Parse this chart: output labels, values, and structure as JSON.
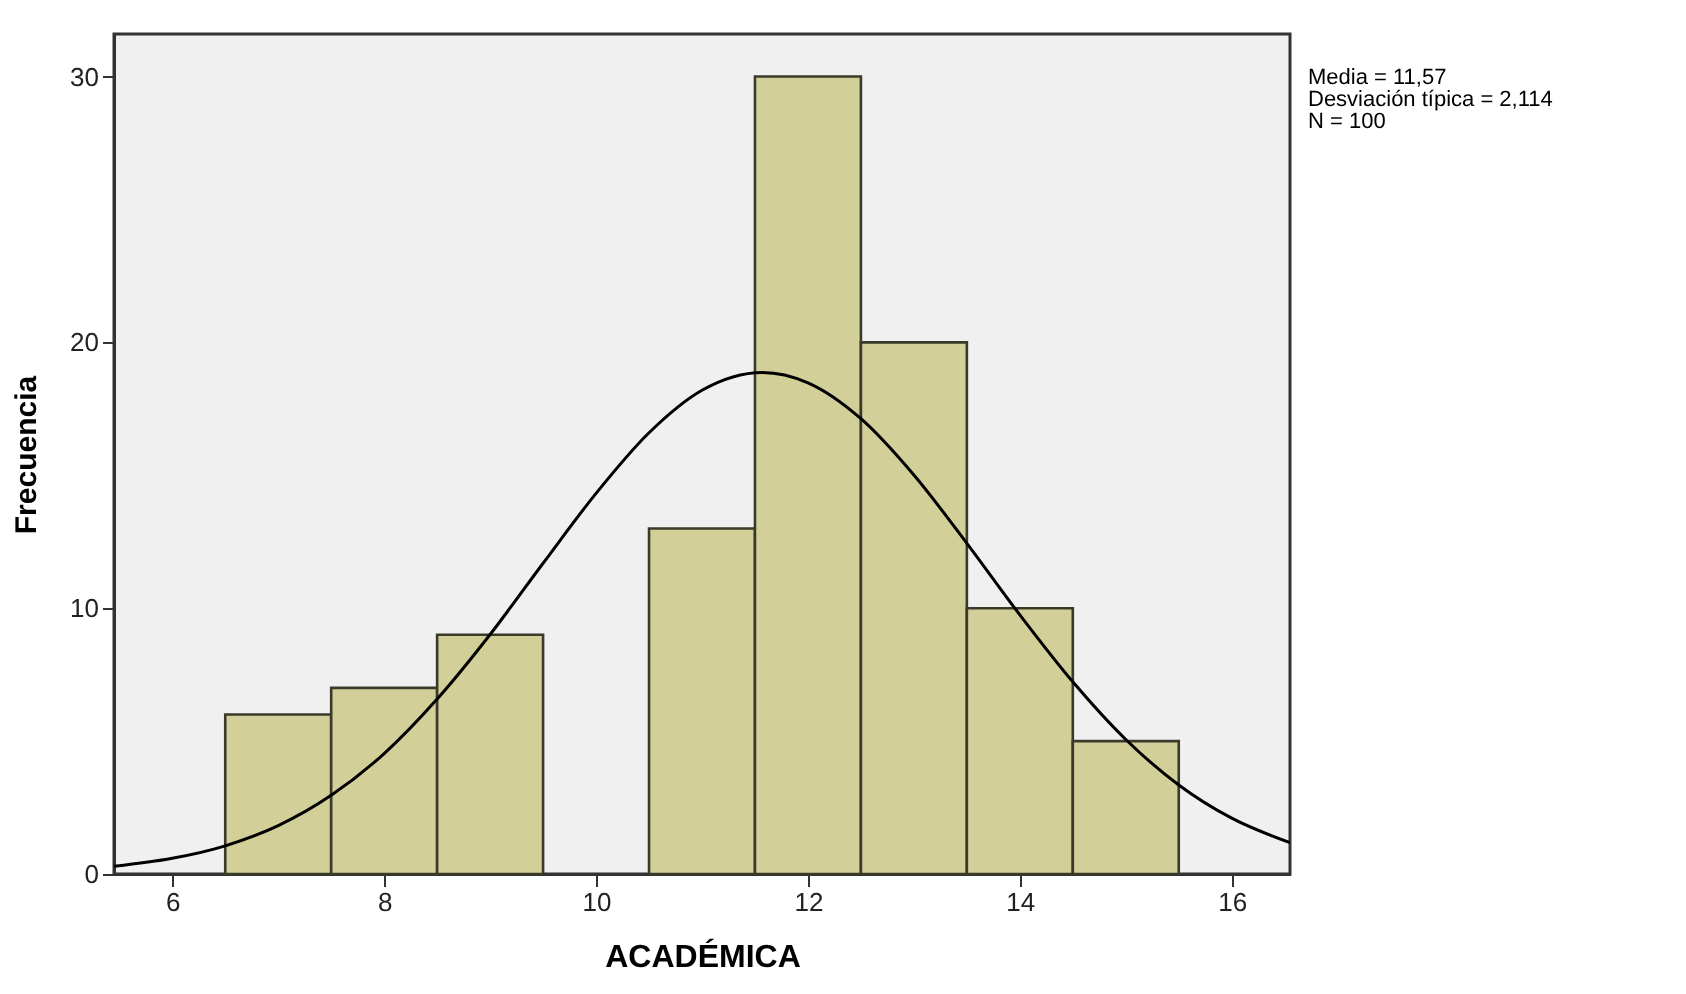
{
  "chart_data": {
    "type": "histogram",
    "xlabel": "ACADÉMICA",
    "ylabel": "Frecuencia",
    "bins": [
      6.5,
      7.5,
      8.5,
      9.5,
      10.5,
      11.5,
      12.5,
      13.5,
      14.5,
      15.5
    ],
    "series": [
      {
        "type": "histogram",
        "color": "#d3cf99",
        "values": [
          6,
          7,
          9,
          0,
          13,
          30,
          20,
          10,
          5
        ]
      },
      {
        "type": "line",
        "color": "#000000",
        "x": [
          5.45,
          6,
          6.5,
          7,
          7.5,
          8,
          8.5,
          9,
          9.5,
          10,
          10.5,
          11,
          11.57,
          12,
          12.5,
          13,
          13.5,
          14,
          14.5,
          15,
          15.5,
          16,
          16.55
        ],
        "values": [
          0.29,
          0.59,
          1.06,
          1.82,
          2.96,
          4.53,
          6.58,
          9.01,
          11.69,
          14.32,
          16.6,
          18.2,
          18.87,
          18.48,
          17.13,
          15.01,
          12.44,
          9.75,
          7.23,
          5.06,
          3.35,
          2.1,
          1.18
        ]
      }
    ],
    "xlim": [
      5.45,
      16.55
    ],
    "ylim": [
      0,
      31.6
    ],
    "xticks": [
      6,
      8,
      10,
      12,
      14,
      16
    ],
    "yticks": [
      0,
      10,
      20,
      30
    ],
    "grid": false,
    "annotations": [
      "Media = 11,57",
      "Desviación típica = 2,114",
      "N = 100"
    ]
  }
}
